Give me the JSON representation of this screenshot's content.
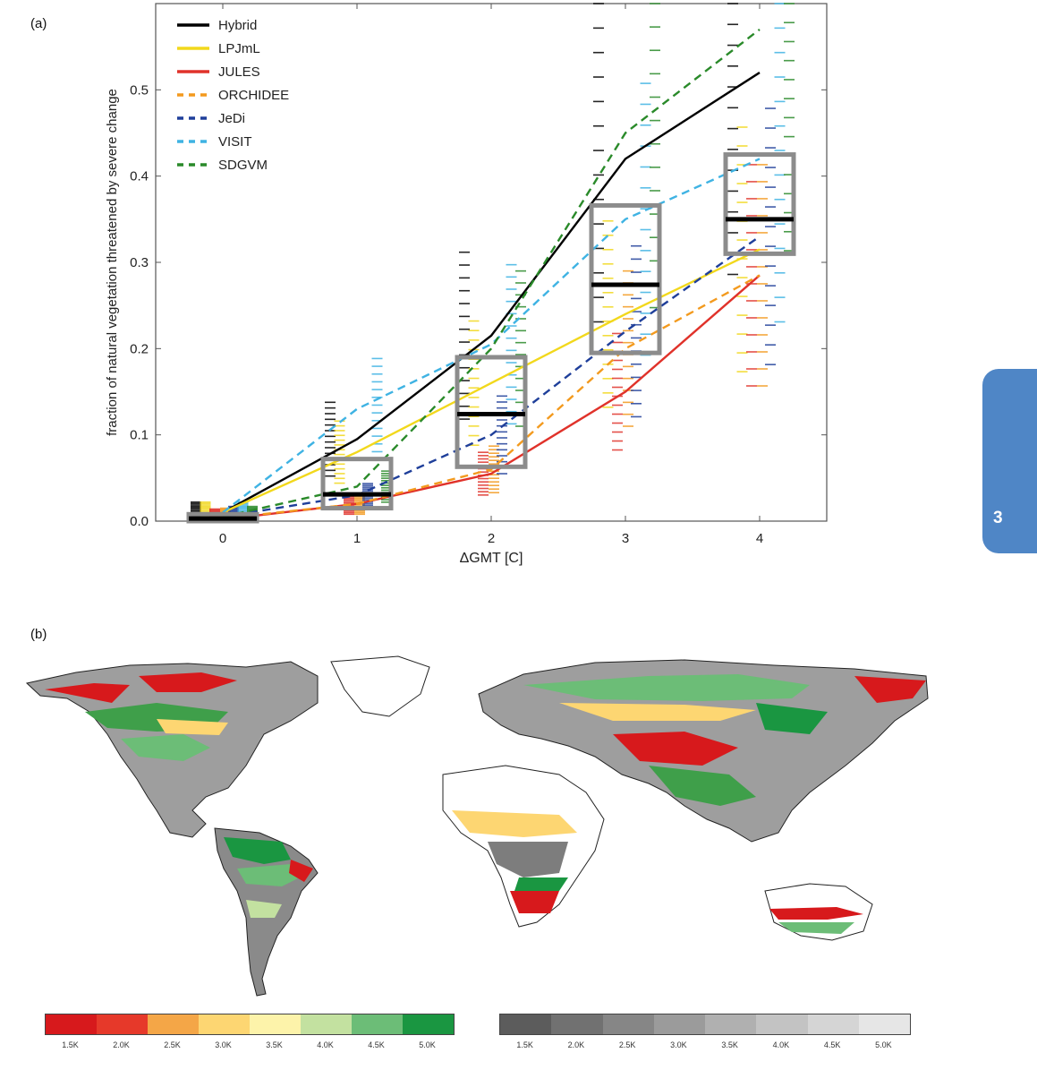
{
  "panel_a_label": "(a)",
  "panel_b_label": "(b)",
  "tab_label": "3",
  "chart_data": {
    "type": "line",
    "title": "",
    "xlabel": "ΔGMT [C]",
    "ylabel": "fraction of natural vegetation threatened by severe change",
    "xlim": [
      -0.5,
      4.5
    ],
    "ylim": [
      0,
      0.6
    ],
    "x_ticks": [
      "0",
      "1",
      "2",
      "3",
      "4"
    ],
    "y_ticks": [
      "0.0",
      "0.1",
      "0.2",
      "0.3",
      "0.4",
      "0.5"
    ],
    "legend_position": "top-left",
    "x": [
      0,
      1,
      2,
      3,
      4
    ],
    "series": [
      {
        "name": "Hybrid",
        "color": "#000000",
        "dash": false,
        "values": [
          0.01,
          0.095,
          0.215,
          0.42,
          0.52
        ]
      },
      {
        "name": "LPJmL",
        "color": "#f2d81c",
        "dash": false,
        "values": [
          0.01,
          0.08,
          0.16,
          0.24,
          0.315
        ]
      },
      {
        "name": "JULES",
        "color": "#e0322a",
        "dash": false,
        "values": [
          0.002,
          0.02,
          0.055,
          0.15,
          0.285
        ]
      },
      {
        "name": "ORCHIDEE",
        "color": "#f39a1e",
        "dash": true,
        "values": [
          0.003,
          0.02,
          0.06,
          0.2,
          0.285
        ]
      },
      {
        "name": "JeDi",
        "color": "#1f3f9a",
        "dash": true,
        "values": [
          0.005,
          0.03,
          0.1,
          0.22,
          0.33
        ]
      },
      {
        "name": "VISIT",
        "color": "#3fb3e3",
        "dash": true,
        "values": [
          0.01,
          0.13,
          0.205,
          0.35,
          0.42
        ]
      },
      {
        "name": "SDGVM",
        "color": "#2a8a2a",
        "dash": true,
        "values": [
          0.005,
          0.04,
          0.2,
          0.45,
          0.57
        ]
      }
    ],
    "boxes": [
      {
        "x": 0,
        "low": 0.0,
        "high": 0.008,
        "median": 0.003
      },
      {
        "x": 1,
        "low": 0.015,
        "high": 0.072,
        "median": 0.031
      },
      {
        "x": 2,
        "low": 0.063,
        "high": 0.19,
        "median": 0.124
      },
      {
        "x": 3,
        "low": 0.195,
        "high": 0.366,
        "median": 0.274
      },
      {
        "x": 4,
        "low": 0.31,
        "high": 0.425,
        "median": 0.35
      }
    ]
  },
  "colorbar_left": {
    "colors": [
      "#d7191c",
      "#e6392a",
      "#f4a647",
      "#fdd672",
      "#fdf3aa",
      "#c3e1a0",
      "#6cbd77",
      "#1a9641"
    ],
    "ticks": [
      "1.5K",
      "2.0K",
      "2.5K",
      "3.0K",
      "3.5K",
      "4.0K",
      "4.5K",
      "5.0K"
    ]
  },
  "colorbar_right": {
    "colors": [
      "#5c5c5c",
      "#717171",
      "#868686",
      "#9b9b9b",
      "#b0b0b0",
      "#c3c3c3",
      "#d5d5d5",
      "#e6e6e6"
    ],
    "ticks": [
      "1.5K",
      "2.0K",
      "2.5K",
      "3.0K",
      "3.5K",
      "4.0K",
      "4.5K",
      "5.0K"
    ]
  }
}
